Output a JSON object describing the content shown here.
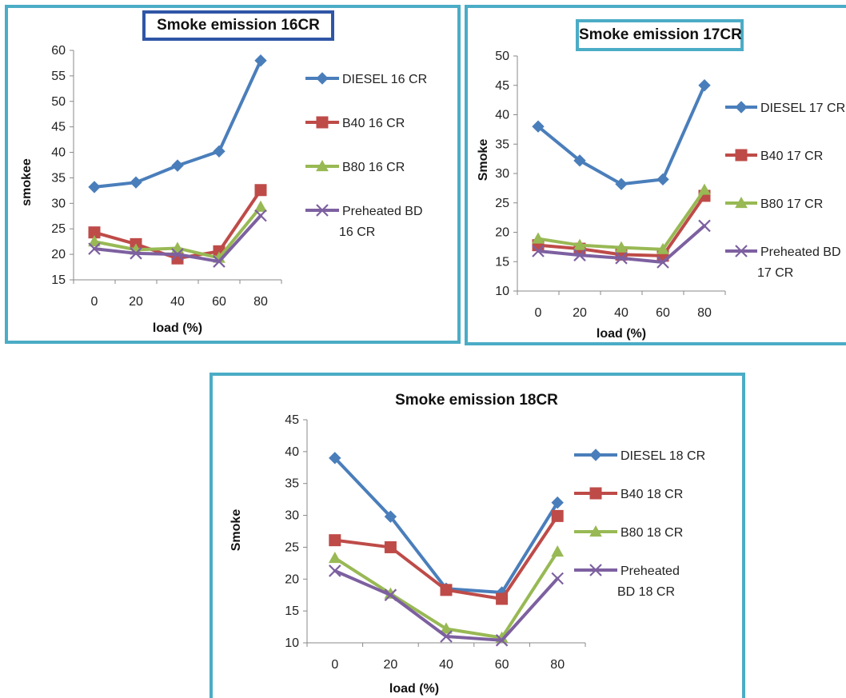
{
  "chart_data": [
    {
      "type": "line",
      "title": "Smoke emission 16CR",
      "xlabel": "load (%)",
      "ylabel": "smokee",
      "categories": [
        "0",
        "20",
        "40",
        "60",
        "80"
      ],
      "yticks": [
        "15",
        "20",
        "25",
        "30",
        "35",
        "40",
        "45",
        "50",
        "55",
        "60"
      ],
      "ylim": [
        15,
        60
      ],
      "grid": false,
      "legend_position": "right",
      "series": [
        {
          "name": "DIESEL 16 CR",
          "values": [
            33.2,
            34.1,
            37.4,
            40.2,
            58.0
          ],
          "color": "#4a7ebb",
          "marker": "diamond"
        },
        {
          "name": "B40  16 CR",
          "values": [
            24.3,
            22.0,
            19.2,
            20.6,
            32.6
          ],
          "color": "#be4b48",
          "marker": "square"
        },
        {
          "name": "B80  16 CR",
          "values": [
            22.5,
            20.9,
            21.2,
            19.3,
            29.3
          ],
          "color": "#98b954",
          "marker": "triangle"
        },
        {
          "name": "Preheated BD 16 CR",
          "values": [
            21.1,
            20.2,
            20.0,
            18.6,
            27.6
          ],
          "color": "#7d60a0",
          "marker": "x"
        }
      ]
    },
    {
      "type": "line",
      "title": "Smoke emission 17CR",
      "xlabel": "load (%)",
      "ylabel": "Smoke",
      "categories": [
        "0",
        "20",
        "40",
        "60",
        "80"
      ],
      "yticks": [
        "10",
        "15",
        "20",
        "25",
        "30",
        "35",
        "40",
        "45",
        "50"
      ],
      "ylim": [
        10,
        50
      ],
      "grid": false,
      "legend_position": "right",
      "series": [
        {
          "name": "DIESEL 17 CR",
          "values": [
            38.0,
            32.2,
            28.2,
            29.0,
            45.0
          ],
          "color": "#4a7ebb",
          "marker": "diamond"
        },
        {
          "name": "B40  17 CR",
          "values": [
            17.8,
            17.2,
            16.2,
            16.0,
            26.2
          ],
          "color": "#be4b48",
          "marker": "square"
        },
        {
          "name": "B80  17 CR",
          "values": [
            18.9,
            17.8,
            17.4,
            17.1,
            27.2
          ],
          "color": "#98b954",
          "marker": "triangle"
        },
        {
          "name": "Preheated BD 17 CR",
          "values": [
            16.8,
            16.1,
            15.6,
            14.9,
            21.1
          ],
          "color": "#7d60a0",
          "marker": "x"
        }
      ]
    },
    {
      "type": "line",
      "title": "Smoke emission 18CR",
      "xlabel": "load (%)",
      "ylabel": "Smoke",
      "categories": [
        "0",
        "20",
        "40",
        "60",
        "80"
      ],
      "yticks": [
        "10",
        "15",
        "20",
        "25",
        "30",
        "35",
        "40",
        "45"
      ],
      "ylim": [
        10,
        45
      ],
      "grid": false,
      "legend_position": "right",
      "series": [
        {
          "name": "DIESEL 18 CR",
          "values": [
            39.0,
            29.8,
            18.5,
            17.9,
            32.0
          ],
          "color": "#4a7ebb",
          "marker": "diamond"
        },
        {
          "name": "B40 18 CR",
          "values": [
            26.1,
            25.0,
            18.3,
            16.9,
            29.9
          ],
          "color": "#be4b48",
          "marker": "square"
        },
        {
          "name": "B80 18 CR",
          "values": [
            23.3,
            17.7,
            12.2,
            10.8,
            24.3
          ],
          "color": "#98b954",
          "marker": "triangle"
        },
        {
          "name": "Preheated BD 18 CR",
          "values": [
            21.3,
            17.5,
            11.0,
            10.4,
            20.1
          ],
          "color": "#7d60a0",
          "marker": "x"
        }
      ]
    }
  ]
}
